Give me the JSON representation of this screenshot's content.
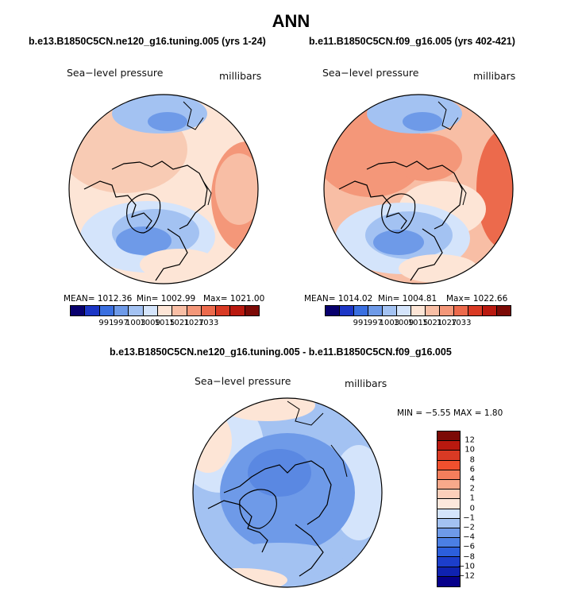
{
  "title": "ANN",
  "panel_left": {
    "case": "b.e13.B1850C5CN.ne120_g16.tuning.005 (yrs 1-24)",
    "variable": "Sea−level pressure",
    "units": "millibars",
    "mean": "MEAN= 1012.36",
    "min": "Min= 1002.99",
    "max": "Max= 1021.00"
  },
  "panel_right": {
    "case": "b.e11.B1850C5CN.f09_g16.005 (yrs 402-421)",
    "variable": "Sea−level pressure",
    "units": "millibars",
    "mean": "MEAN= 1014.02",
    "min": "Min= 1004.81",
    "max": "Max= 1022.66"
  },
  "diff_panel": {
    "title": "b.e13.B1850C5CN.ne120_g16.tuning.005 - b.e11.B1850C5CN.f09_g16.005",
    "variable": "Sea−level pressure",
    "units": "millibars",
    "stats": "MIN =  −5.55 MAX =   1.80"
  },
  "abs_colorbar": {
    "colors": [
      "#08006e",
      "#1c36c6",
      "#3a6fe0",
      "#6e9ae8",
      "#a3c2f2",
      "#d4e4fb",
      "#fde5d6",
      "#f8bea5",
      "#f49779",
      "#ec6a4c",
      "#d93a24",
      "#b9190f",
      "#7c0a06"
    ],
    "labels": [
      "991",
      "997",
      "1003",
      "1009",
      "1015",
      "1021",
      "1027",
      "1033"
    ]
  },
  "diff_colorbar": {
    "colors": [
      "#7c0a06",
      "#b9190f",
      "#d93a24",
      "#f0502e",
      "#f47e5c",
      "#f8a98b",
      "#fccfba",
      "#fde8dc",
      "#d4e4fb",
      "#a3c2f2",
      "#6e9ae8",
      "#4b7fe4",
      "#2c5fdc",
      "#1c3ecb",
      "#0f22b0",
      "#06008a"
    ],
    "labels": [
      "12",
      "10",
      "8",
      "6",
      "4",
      "2",
      "1",
      "0",
      "−1",
      "−2",
      "−4",
      "−6",
      "−8",
      "−10",
      "−12"
    ]
  }
}
